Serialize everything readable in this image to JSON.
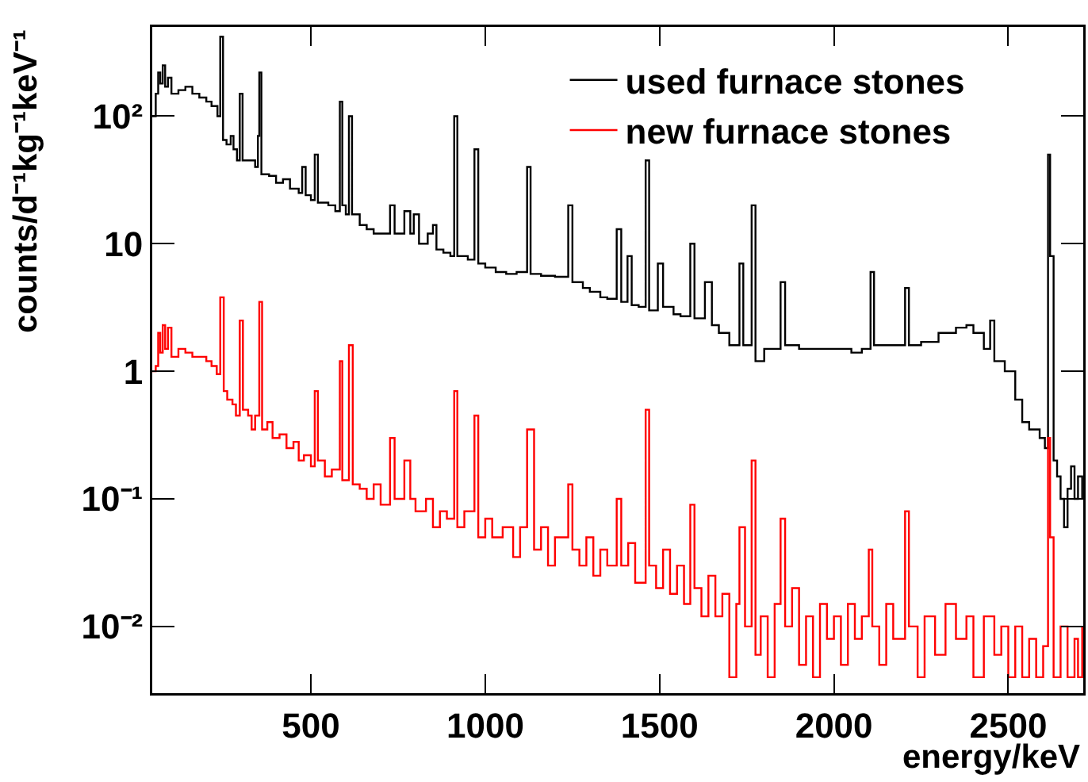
{
  "chart_data": {
    "type": "step",
    "xlabel": "energy/keV",
    "ylabel": "counts/d⁻¹kg⁻¹keV⁻¹",
    "log": "y",
    "grid": false,
    "legend": "top right",
    "xlim": [
      45,
      2715
    ],
    "xticks": [
      500,
      1000,
      1500,
      2000,
      2500
    ],
    "ylim": [
      0.003,
      500
    ],
    "yticks": [
      {
        "value": 0.01,
        "label": "10⁻²"
      },
      {
        "value": 0.1,
        "label": "10⁻¹"
      },
      1,
      10,
      {
        "value": 100,
        "label": "10²"
      }
    ],
    "series": [
      {
        "name": "used furnace stones",
        "color": "#000000",
        "x": [
          45,
          55,
          62,
          68,
          75,
          82,
          90,
          100,
          120,
          140,
          160,
          180,
          200,
          215,
          232,
          240,
          248,
          258,
          270,
          278,
          288,
          296,
          304,
          320,
          340,
          348,
          352,
          358,
          380,
          400,
          420,
          440,
          465,
          475,
          485,
          500,
          511,
          520,
          550,
          570,
          583,
          590,
          600,
          609,
          618,
          640,
          660,
          680,
          700,
          727,
          740,
          768,
          785,
          795,
          810,
          835,
          850,
          860,
          880,
          900,
          911,
          920,
          950,
          969,
          980,
          1000,
          1030,
          1060,
          1090,
          1120,
          1130,
          1160,
          1200,
          1238,
          1250,
          1280,
          1300,
          1330,
          1350,
          1377,
          1390,
          1408,
          1420,
          1440,
          1460,
          1470,
          1495,
          1510,
          1540,
          1560,
          1588,
          1600,
          1630,
          1650,
          1670,
          1700,
          1729,
          1740,
          1764,
          1775,
          1800,
          1847,
          1860,
          1900,
          1950,
          2000,
          2050,
          2080,
          2105,
          2115,
          2140,
          2204,
          2215,
          2250,
          2300,
          2350,
          2380,
          2400,
          2430,
          2448,
          2460,
          2490,
          2520,
          2540,
          2560,
          2590,
          2605,
          2614,
          2620,
          2630,
          2640,
          2650,
          2660,
          2670,
          2680,
          2690,
          2700,
          2712
        ],
        "values": [
          100,
          150,
          220,
          180,
          250,
          170,
          200,
          150,
          160,
          170,
          150,
          140,
          130,
          120,
          100,
          420,
          65,
          60,
          70,
          55,
          45,
          150,
          45,
          45,
          40,
          70,
          220,
          35,
          34,
          30,
          32,
          27,
          25,
          40,
          24,
          22,
          50,
          21,
          20,
          18,
          130,
          20,
          17,
          100,
          17,
          14,
          13,
          12,
          12,
          20,
          12,
          18,
          12,
          17,
          10,
          12,
          14,
          9,
          8.5,
          8,
          100,
          8,
          7.5,
          55,
          7,
          6.5,
          6,
          5.8,
          6,
          40,
          5.8,
          5.6,
          5.5,
          20,
          5,
          4.5,
          4.2,
          3.8,
          3.7,
          13,
          3.5,
          8,
          3.3,
          3.2,
          45,
          3,
          7,
          3.2,
          2.8,
          2.7,
          10,
          2.6,
          5,
          2.3,
          2,
          1.6,
          7,
          1.6,
          20,
          1.2,
          1.5,
          5,
          1.6,
          1.5,
          1.5,
          1.5,
          1.4,
          1.5,
          6,
          1.6,
          1.6,
          4.5,
          1.6,
          1.7,
          2,
          2.2,
          2.3,
          2,
          1.5,
          2.5,
          1.2,
          1,
          0.6,
          0.4,
          0.35,
          0.3,
          0.25,
          50,
          8,
          0.2,
          0.15,
          0.1,
          0.06,
          0.12,
          0.18,
          0.1,
          0.15,
          0.1
        ]
      },
      {
        "name": "new furnace stones",
        "color": "#ff0000",
        "x": [
          45,
          55,
          62,
          68,
          75,
          82,
          90,
          100,
          120,
          140,
          160,
          185,
          200,
          215,
          230,
          240,
          250,
          260,
          275,
          285,
          296,
          305,
          320,
          330,
          340,
          352,
          360,
          375,
          390,
          410,
          430,
          450,
          465,
          480,
          500,
          511,
          520,
          540,
          560,
          583,
          590,
          609,
          620,
          640,
          660,
          680,
          700,
          727,
          740,
          768,
          785,
          800,
          830,
          850,
          870,
          890,
          911,
          920,
          940,
          969,
          980,
          1000,
          1020,
          1050,
          1080,
          1100,
          1120,
          1140,
          1160,
          1180,
          1200,
          1238,
          1250,
          1270,
          1290,
          1310,
          1330,
          1350,
          1377,
          1390,
          1410,
          1430,
          1460,
          1470,
          1490,
          1510,
          1530,
          1550,
          1570,
          1588,
          1600,
          1620,
          1640,
          1660,
          1680,
          1700,
          1720,
          1729,
          1745,
          1764,
          1775,
          1790,
          1810,
          1830,
          1847,
          1860,
          1880,
          1900,
          1920,
          1940,
          1960,
          1980,
          2000,
          2020,
          2040,
          2060,
          2080,
          2100,
          2110,
          2130,
          2150,
          2170,
          2204,
          2215,
          2240,
          2260,
          2290,
          2320,
          2350,
          2380,
          2400,
          2430,
          2460,
          2480,
          2500,
          2520,
          2540,
          2560,
          2580,
          2600,
          2614,
          2620,
          2630,
          2650,
          2670,
          2690,
          2700,
          2712
        ],
        "values": [
          1,
          1.1,
          2,
          1.4,
          2.3,
          1.5,
          2.2,
          1.3,
          1.5,
          1.4,
          1.3,
          1.3,
          1.2,
          1.1,
          0.95,
          3.8,
          0.7,
          0.6,
          0.55,
          0.45,
          2.5,
          0.5,
          0.45,
          0.35,
          0.45,
          3.5,
          0.35,
          0.4,
          0.3,
          0.32,
          0.25,
          0.28,
          0.2,
          0.22,
          0.18,
          0.7,
          0.2,
          0.15,
          0.17,
          1.2,
          0.14,
          1.6,
          0.13,
          0.12,
          0.1,
          0.13,
          0.09,
          0.3,
          0.1,
          0.2,
          0.1,
          0.08,
          0.1,
          0.06,
          0.08,
          0.07,
          0.7,
          0.06,
          0.08,
          0.45,
          0.05,
          0.07,
          0.05,
          0.06,
          0.035,
          0.06,
          0.35,
          0.04,
          0.06,
          0.03,
          0.05,
          0.13,
          0.04,
          0.03,
          0.05,
          0.025,
          0.04,
          0.03,
          0.1,
          0.03,
          0.045,
          0.022,
          0.5,
          0.03,
          0.02,
          0.04,
          0.018,
          0.03,
          0.015,
          0.09,
          0.02,
          0.012,
          0.025,
          0.012,
          0.018,
          0.004,
          0.015,
          0.06,
          0.01,
          0.2,
          0.006,
          0.012,
          0.004,
          0.015,
          0.07,
          0.01,
          0.02,
          0.005,
          0.012,
          0.004,
          0.015,
          0.008,
          0.012,
          0.005,
          0.015,
          0.008,
          0.012,
          0.04,
          0.01,
          0.005,
          0.015,
          0.008,
          0.08,
          0.01,
          0.004,
          0.012,
          0.006,
          0.015,
          0.008,
          0.012,
          0.004,
          0.012,
          0.006,
          0.01,
          0.004,
          0.01,
          0.004,
          0.008,
          0.004,
          0.007,
          0.3,
          0.05,
          0.004,
          0.01,
          0.004,
          0.008,
          0.004,
          0.01
        ]
      }
    ]
  }
}
